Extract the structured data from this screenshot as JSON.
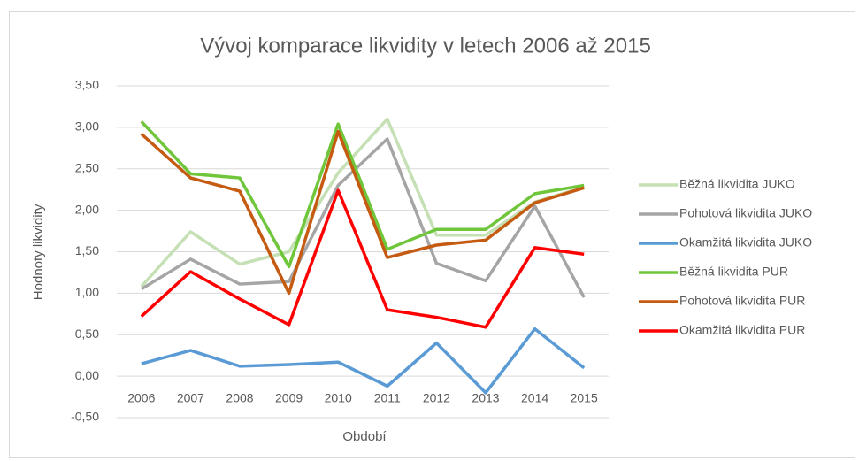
{
  "chart_data": {
    "type": "line",
    "title": "Vývoj komparace likvidity v letech 2006 až 2015",
    "x_label": "Období",
    "y_label": "Hodnoty likvidity",
    "categories": [
      "2006",
      "2007",
      "2008",
      "2009",
      "2010",
      "2011",
      "2012",
      "2013",
      "2014",
      "2015"
    ],
    "series": [
      {
        "name": "Běžná likvidita JUKO",
        "color": "#c5e0b4",
        "values": [
          1.08,
          1.74,
          1.35,
          1.5,
          2.45,
          3.1,
          1.7,
          1.7,
          2.1,
          2.28
        ]
      },
      {
        "name": "Pohotová likvidita JUKO",
        "color": "#a5a5a5",
        "values": [
          1.05,
          1.41,
          1.11,
          1.14,
          2.3,
          2.86,
          1.36,
          1.15,
          2.05,
          0.95
        ]
      },
      {
        "name": "Okamžitá likvidita JUKO",
        "color": "#5b9bd5",
        "values": [
          0.15,
          0.31,
          0.12,
          0.14,
          0.17,
          -0.12,
          0.4,
          -0.2,
          0.57,
          0.1
        ]
      },
      {
        "name": "Běžná likvidita PUR",
        "color": "#70c63a",
        "values": [
          3.07,
          2.44,
          2.39,
          1.32,
          3.04,
          1.53,
          1.77,
          1.77,
          2.2,
          2.3
        ]
      },
      {
        "name": "Pohotová likvidita PUR",
        "color": "#c55a11",
        "values": [
          2.92,
          2.39,
          2.23,
          1.0,
          2.95,
          1.43,
          1.58,
          1.64,
          2.09,
          2.27
        ]
      },
      {
        "name": "Okamžitá likvidita PUR",
        "color": "#ff0000",
        "values": [
          0.72,
          1.26,
          0.93,
          0.62,
          2.24,
          0.8,
          0.71,
          0.59,
          1.55,
          1.47
        ]
      }
    ],
    "ylim": [
      -0.5,
      3.5
    ],
    "yticks": [
      {
        "value": -0.5,
        "label": "-0,50"
      },
      {
        "value": 0,
        "label": "0,00"
      },
      {
        "value": 0.5,
        "label": "0,50"
      },
      {
        "value": 1,
        "label": "1,00"
      },
      {
        "value": 1.5,
        "label": "1,50"
      },
      {
        "value": 2,
        "label": "2,00"
      },
      {
        "value": 2.5,
        "label": "2,50"
      },
      {
        "value": 3,
        "label": "3,00"
      },
      {
        "value": 3.5,
        "label": "3,50"
      }
    ],
    "grid": true,
    "legend": "right"
  }
}
